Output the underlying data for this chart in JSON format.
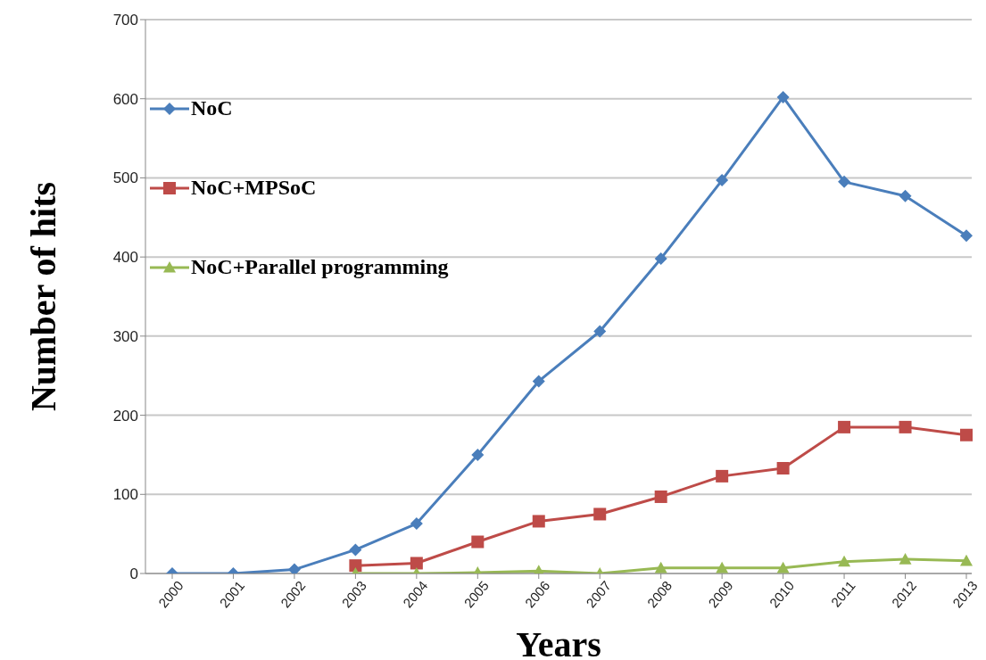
{
  "chart_data": {
    "type": "line",
    "xlabel": "Years",
    "ylabel": "Number of hits",
    "categories": [
      "2000",
      "2001",
      "2002",
      "2003",
      "2004",
      "2005",
      "2006",
      "2007",
      "2008",
      "2009",
      "2010",
      "2011",
      "2012",
      "2013"
    ],
    "series": [
      {
        "name": "NoC",
        "color": "#4a7ebb",
        "marker": "diamond",
        "values": [
          0,
          0,
          5,
          30,
          63,
          150,
          243,
          306,
          398,
          497,
          602,
          495,
          477,
          427
        ]
      },
      {
        "name": "NoC+MPSoC",
        "color": "#be4b48",
        "marker": "square",
        "values": [
          null,
          null,
          null,
          10,
          13,
          40,
          66,
          75,
          97,
          123,
          133,
          185,
          185,
          175
        ]
      },
      {
        "name": "NoC+Parallel programming",
        "color": "#98b954",
        "marker": "triangle",
        "values": [
          null,
          null,
          null,
          0,
          0,
          1,
          3,
          0,
          7,
          7,
          7,
          15,
          18,
          16
        ]
      }
    ],
    "ylim": [
      0,
      700
    ],
    "yticks": [
      0,
      100,
      200,
      300,
      400,
      500,
      600,
      700
    ],
    "grid": "y",
    "legend": "top left"
  }
}
